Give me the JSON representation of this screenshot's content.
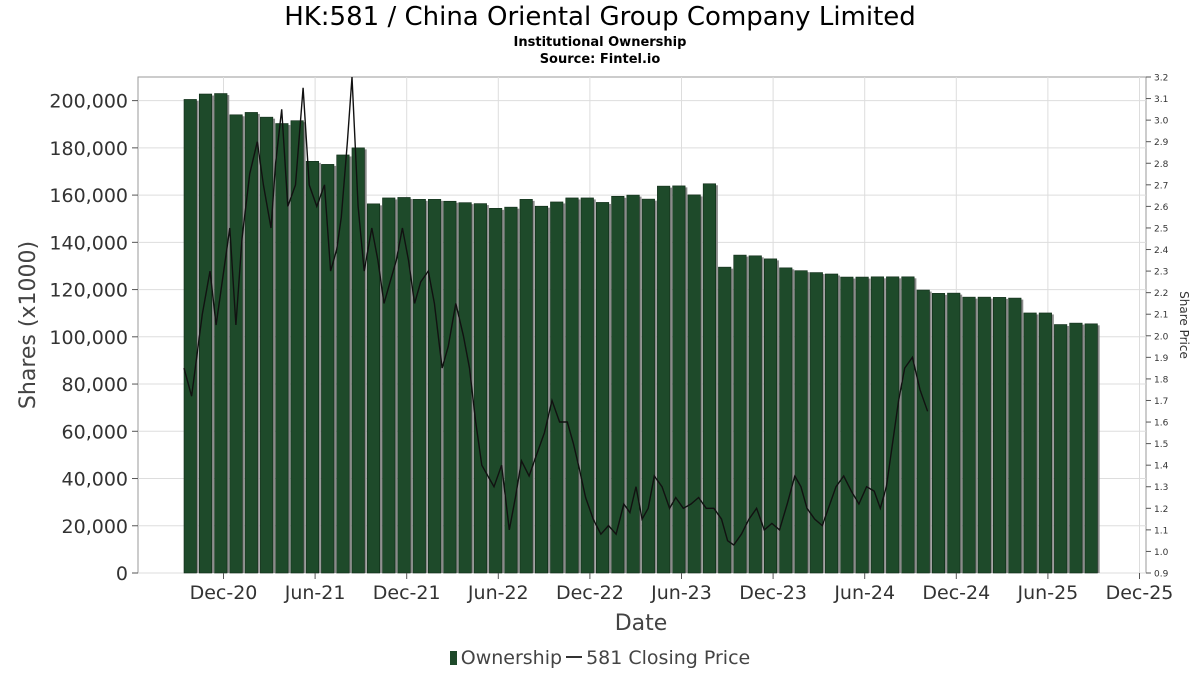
{
  "chart_data": {
    "type": "bar",
    "title": "HK:581 / China Oriental Group Company Limited",
    "subtitle": "Institutional Ownership",
    "source": "Source: Fintel.io",
    "xlabel": "Date",
    "ylabel": "Shares (x1000)",
    "y2label": "Share Price",
    "ylim": [
      0,
      210000
    ],
    "y2lim": [
      0.9,
      3.2
    ],
    "grid": true,
    "legend_position": "bottom",
    "x_ticks": [
      "Dec-20",
      "Jun-21",
      "Dec-21",
      "Jun-22",
      "Dec-22",
      "Jun-23",
      "Dec-23",
      "Jun-24",
      "Dec-24",
      "Jun-25",
      "Dec-25"
    ],
    "y_ticks": [
      "0",
      "20,000",
      "40,000",
      "60,000",
      "80,000",
      "100,000",
      "120,000",
      "140,000",
      "160,000",
      "180,000",
      "200,000"
    ],
    "y2_ticks": [
      "0.9",
      "1.0",
      "1.1",
      "1.2",
      "1.3",
      "1.4",
      "1.5",
      "1.6",
      "1.7",
      "1.8",
      "1.9",
      "2.0",
      "2.1",
      "2.2",
      "2.3",
      "2.4",
      "2.5",
      "2.6",
      "2.7",
      "2.8",
      "2.9",
      "3.0",
      "3.1",
      "3.2"
    ],
    "series": [
      {
        "name": "Ownership",
        "color": "#1e4a2a",
        "values": [
          200500,
          202800,
          203000,
          194000,
          195000,
          193000,
          190300,
          191500,
          174300,
          173000,
          177000,
          180000,
          156300,
          158800,
          159000,
          158200,
          158200,
          157400,
          156800,
          156400,
          154400,
          154900,
          158200,
          155300,
          157100,
          158800,
          158800,
          156900,
          159500,
          160000,
          158300,
          163800,
          163900,
          160100,
          164800,
          129500,
          134600,
          134300,
          133000,
          129200,
          128000,
          127200,
          126600,
          125300,
          125300,
          125400,
          125400,
          125400,
          119800,
          118400,
          118500,
          116800,
          116800,
          116700,
          116400,
          110100,
          110100,
          105200,
          105800,
          105500
        ]
      },
      {
        "name": "581 Closing Price",
        "color": "#111111",
        "points": [
          [
            0.0,
            1.85
          ],
          [
            0.5,
            1.72
          ],
          [
            1.2,
            2.1
          ],
          [
            1.7,
            2.3
          ],
          [
            2.1,
            2.05
          ],
          [
            2.6,
            2.3
          ],
          [
            3.0,
            2.5
          ],
          [
            3.4,
            2.05
          ],
          [
            3.8,
            2.45
          ],
          [
            4.3,
            2.75
          ],
          [
            4.8,
            2.9
          ],
          [
            5.2,
            2.7
          ],
          [
            5.7,
            2.5
          ],
          [
            6.0,
            2.8
          ],
          [
            6.4,
            3.05
          ],
          [
            6.8,
            2.6
          ],
          [
            7.3,
            2.7
          ],
          [
            7.8,
            3.15
          ],
          [
            8.2,
            2.7
          ],
          [
            8.7,
            2.6
          ],
          [
            9.2,
            2.7
          ],
          [
            9.6,
            2.3
          ],
          [
            10.0,
            2.4
          ],
          [
            10.3,
            2.55
          ],
          [
            10.7,
            2.9
          ],
          [
            11.0,
            3.2
          ],
          [
            11.4,
            2.6
          ],
          [
            11.8,
            2.3
          ],
          [
            12.3,
            2.5
          ],
          [
            12.7,
            2.35
          ],
          [
            13.1,
            2.15
          ],
          [
            13.5,
            2.25
          ],
          [
            13.9,
            2.35
          ],
          [
            14.3,
            2.5
          ],
          [
            14.7,
            2.35
          ],
          [
            15.1,
            2.15
          ],
          [
            15.5,
            2.25
          ],
          [
            16.0,
            2.3
          ],
          [
            16.4,
            2.15
          ],
          [
            16.9,
            1.85
          ],
          [
            17.3,
            1.95
          ],
          [
            17.8,
            2.15
          ],
          [
            18.3,
            2.0
          ],
          [
            18.7,
            1.85
          ],
          [
            19.1,
            1.6
          ],
          [
            19.5,
            1.4
          ],
          [
            19.9,
            1.35
          ],
          [
            20.3,
            1.3
          ],
          [
            20.8,
            1.4
          ],
          [
            21.3,
            1.1
          ],
          [
            21.7,
            1.25
          ],
          [
            22.1,
            1.42
          ],
          [
            22.6,
            1.35
          ],
          [
            23.1,
            1.45
          ],
          [
            23.6,
            1.55
          ],
          [
            24.1,
            1.7
          ],
          [
            24.6,
            1.6
          ],
          [
            25.1,
            1.6
          ],
          [
            25.5,
            1.5
          ],
          [
            25.9,
            1.38
          ],
          [
            26.3,
            1.25
          ],
          [
            26.8,
            1.15
          ],
          [
            27.3,
            1.08
          ],
          [
            27.8,
            1.12
          ],
          [
            28.3,
            1.08
          ],
          [
            28.8,
            1.22
          ],
          [
            29.2,
            1.18
          ],
          [
            29.6,
            1.3
          ],
          [
            30.0,
            1.15
          ],
          [
            30.4,
            1.2
          ],
          [
            30.8,
            1.35
          ],
          [
            31.3,
            1.3
          ],
          [
            31.8,
            1.2
          ],
          [
            32.2,
            1.25
          ],
          [
            32.7,
            1.2
          ],
          [
            33.2,
            1.22
          ],
          [
            33.7,
            1.25
          ],
          [
            34.2,
            1.2
          ],
          [
            34.7,
            1.2
          ],
          [
            35.2,
            1.15
          ],
          [
            35.6,
            1.05
          ],
          [
            36.0,
            1.03
          ],
          [
            36.5,
            1.08
          ],
          [
            37.0,
            1.15
          ],
          [
            37.5,
            1.2
          ],
          [
            38.0,
            1.1
          ],
          [
            38.5,
            1.13
          ],
          [
            39.0,
            1.1
          ],
          [
            39.5,
            1.22
          ],
          [
            40.0,
            1.35
          ],
          [
            40.4,
            1.3
          ],
          [
            40.8,
            1.2
          ],
          [
            41.3,
            1.15
          ],
          [
            41.8,
            1.12
          ],
          [
            42.2,
            1.2
          ],
          [
            42.7,
            1.3
          ],
          [
            43.2,
            1.35
          ],
          [
            43.7,
            1.28
          ],
          [
            44.2,
            1.22
          ],
          [
            44.7,
            1.3
          ],
          [
            45.2,
            1.28
          ],
          [
            45.6,
            1.2
          ],
          [
            46.0,
            1.3
          ],
          [
            46.4,
            1.5
          ],
          [
            46.8,
            1.7
          ],
          [
            47.2,
            1.85
          ],
          [
            47.7,
            1.9
          ],
          [
            48.2,
            1.75
          ],
          [
            48.7,
            1.65
          ]
        ]
      }
    ]
  }
}
